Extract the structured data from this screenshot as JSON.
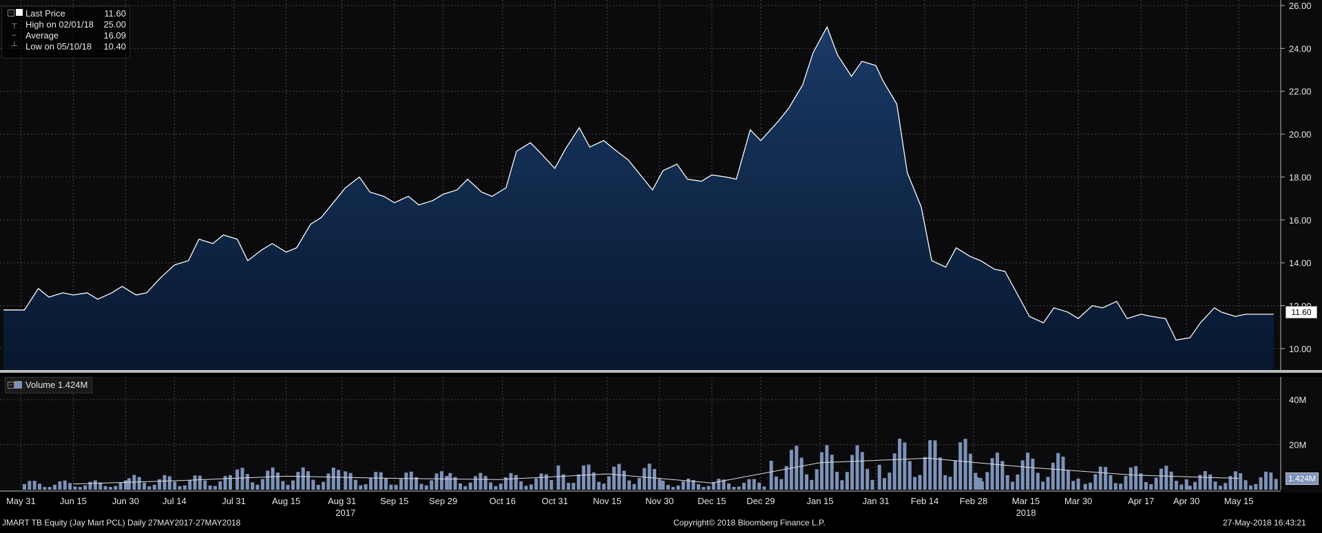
{
  "chart_data": [
    {
      "type": "area",
      "series": [
        {
          "name": "Last Price",
          "x": [
            "2017-05-26",
            "2017-06-01",
            "2017-06-05",
            "2017-06-08",
            "2017-06-12",
            "2017-06-15",
            "2017-06-19",
            "2017-06-22",
            "2017-06-26",
            "2017-06-29",
            "2017-07-03",
            "2017-07-06",
            "2017-07-10",
            "2017-07-14",
            "2017-07-18",
            "2017-07-21",
            "2017-07-25",
            "2017-07-28",
            "2017-08-01",
            "2017-08-04",
            "2017-08-08",
            "2017-08-11",
            "2017-08-15",
            "2017-08-18",
            "2017-08-22",
            "2017-08-25",
            "2017-08-29",
            "2017-09-01",
            "2017-09-05",
            "2017-09-08",
            "2017-09-12",
            "2017-09-15",
            "2017-09-19",
            "2017-09-22",
            "2017-09-26",
            "2017-09-29",
            "2017-10-03",
            "2017-10-06",
            "2017-10-10",
            "2017-10-13",
            "2017-10-17",
            "2017-10-20",
            "2017-10-24",
            "2017-10-27",
            "2017-10-31",
            "2017-11-03",
            "2017-11-07",
            "2017-11-10",
            "2017-11-14",
            "2017-11-17",
            "2017-11-21",
            "2017-11-24",
            "2017-11-28",
            "2017-12-01",
            "2017-12-05",
            "2017-12-08",
            "2017-12-12",
            "2017-12-15",
            "2017-12-19",
            "2017-12-22",
            "2017-12-26",
            "2017-12-29",
            "2018-01-03",
            "2018-01-06",
            "2018-01-10",
            "2018-01-13",
            "2018-01-17",
            "2018-01-20",
            "2018-01-24",
            "2018-01-27",
            "2018-01-31",
            "2018-02-02",
            "2018-02-06",
            "2018-02-09",
            "2018-02-13",
            "2018-02-16",
            "2018-02-20",
            "2018-02-23",
            "2018-02-27",
            "2018-03-02",
            "2018-03-06",
            "2018-03-09",
            "2018-03-13",
            "2018-03-16",
            "2018-03-20",
            "2018-03-23",
            "2018-03-27",
            "2018-03-30",
            "2018-04-03",
            "2018-04-06",
            "2018-04-10",
            "2018-04-13",
            "2018-04-17",
            "2018-04-20",
            "2018-04-24",
            "2018-04-27",
            "2018-05-01",
            "2018-05-04",
            "2018-05-08",
            "2018-05-10",
            "2018-05-14",
            "2018-05-17",
            "2018-05-21",
            "2018-05-25"
          ],
          "values": [
            11.8,
            11.8,
            12.8,
            12.4,
            12.6,
            12.5,
            12.6,
            12.3,
            12.6,
            12.9,
            12.5,
            12.6,
            13.3,
            13.9,
            14.1,
            15.1,
            14.9,
            15.3,
            15.1,
            14.1,
            14.6,
            14.9,
            14.5,
            14.7,
            15.8,
            16.1,
            16.9,
            17.5,
            18.0,
            17.3,
            17.1,
            16.8,
            17.1,
            16.7,
            16.9,
            17.2,
            17.4,
            17.9,
            17.3,
            17.1,
            17.5,
            19.2,
            19.6,
            19.1,
            18.4,
            19.3,
            20.3,
            19.4,
            19.7,
            19.3,
            18.8,
            18.2,
            17.4,
            18.3,
            18.6,
            17.9,
            17.8,
            18.1,
            18.0,
            17.9,
            20.2,
            19.7,
            20.6,
            21.2,
            22.3,
            23.8,
            25.0,
            23.7,
            22.7,
            23.4,
            23.2,
            22.5,
            21.4,
            18.2,
            16.6,
            14.1,
            13.8,
            14.7,
            14.3,
            14.1,
            13.7,
            13.6,
            12.4,
            11.5,
            11.2,
            11.9,
            11.7,
            11.4,
            12.0,
            11.9,
            12.2,
            11.4,
            11.6,
            11.5,
            11.4,
            10.4,
            10.5,
            11.2,
            11.9,
            11.7,
            11.5,
            11.6,
            11.6,
            11.6
          ]
        },
        {
          "name": "High on 02/01/18",
          "values": [
            25.0
          ]
        },
        {
          "name": "Average",
          "values": [
            16.09
          ]
        },
        {
          "name": "Low on 05/10/18",
          "values": [
            10.4
          ]
        }
      ],
      "ylim": [
        9.0,
        26.0
      ],
      "yticks": [
        "10.00",
        "12.00",
        "14.00",
        "16.00",
        "18.00",
        "20.00",
        "22.00",
        "24.00",
        "26.00"
      ],
      "grid": true,
      "legend": "top-left",
      "last_value_label": "11.60"
    },
    {
      "type": "bar",
      "series": [
        {
          "name": "Volume",
          "x": [
            "2017-06",
            "2017-07",
            "2017-08",
            "2017-09",
            "2017-10",
            "2017-11",
            "2017-12",
            "2018-01",
            "2018-02",
            "2018-03",
            "2018-04",
            "2018-05"
          ],
          "values": [
            2.5,
            4.0,
            6.0,
            5.0,
            4.5,
            7.0,
            3.0,
            12.0,
            14.0,
            10.0,
            6.5,
            5.0
          ]
        }
      ],
      "ylim": [
        0,
        48
      ],
      "yticks": [
        "20M",
        "40M"
      ],
      "legend_label": "Volume",
      "legend_value": "1.424M",
      "last_value_label": "1.424M",
      "grid": true
    }
  ],
  "x_axis": {
    "tick_labels": [
      "May 31",
      "Jun 15",
      "Jun 30",
      "Jul 14",
      "Jul 31",
      "Aug 15",
      "Aug 31",
      "Sep 15",
      "Sep 29",
      "Oct 16",
      "Oct 31",
      "Nov 15",
      "Nov 30",
      "Dec 15",
      "Dec 29",
      "Jan 15",
      "Jan 31",
      "Feb 14",
      "Feb 28",
      "Mar 15",
      "Mar 30",
      "Apr 17",
      "Apr 30",
      "May 15"
    ],
    "tick_dates": [
      "2017-05-31",
      "2017-06-15",
      "2017-06-30",
      "2017-07-14",
      "2017-07-31",
      "2017-08-15",
      "2017-08-31",
      "2017-09-15",
      "2017-09-29",
      "2017-10-16",
      "2017-10-31",
      "2017-11-15",
      "2017-11-30",
      "2017-12-15",
      "2017-12-29",
      "2018-01-15",
      "2018-01-31",
      "2018-02-14",
      "2018-02-28",
      "2018-03-15",
      "2018-03-30",
      "2018-04-17",
      "2018-04-30",
      "2018-05-15"
    ],
    "years": [
      {
        "label": "2017",
        "date": "2017-09-01"
      },
      {
        "label": "2018",
        "date": "2018-03-15"
      }
    ]
  },
  "legend": {
    "last_price_label": "Last Price",
    "last_price_value": "11.60",
    "high_label": "High on 02/01/18",
    "high_value": "25.00",
    "average_label": "Average",
    "average_value": "16.09",
    "low_label": "Low on 05/10/18",
    "low_value": "10.40"
  },
  "volume_legend": {
    "label": "Volume",
    "value": "1.424M"
  },
  "footer": {
    "left": "JMART TB Equity (Jay Mart PCL)   Daily 27MAY2017-27MAY2018",
    "center": "Copyright© 2018 Bloomberg Finance L.P.",
    "right": "27-May-2018 16:43:21"
  },
  "colors": {
    "background": "#000000",
    "area_fill": "#12294a",
    "line": "#ffffff",
    "volume_bar": "#7d92b8",
    "grid": "#4a4a4a"
  }
}
